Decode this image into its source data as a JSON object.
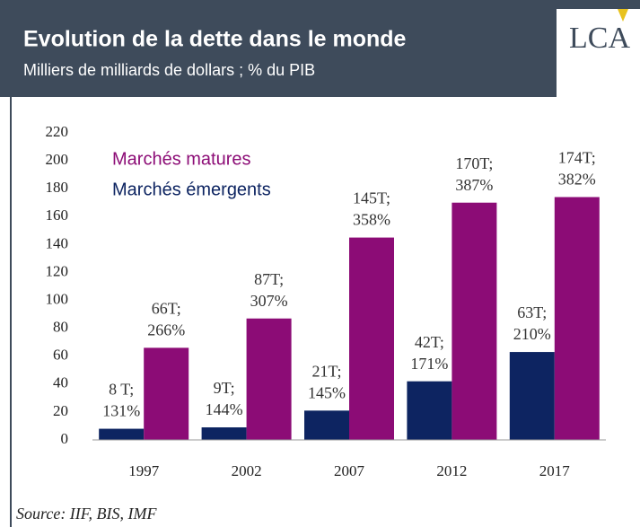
{
  "chart_data": {
    "type": "bar",
    "title": "Evolution de la dette dans le monde",
    "subtitle": "Milliers de milliards de dollars ; % du PIB",
    "logo": "LCA",
    "source": "Source: IIF, BIS, IMF",
    "categories": [
      "1997",
      "2002",
      "2007",
      "2012",
      "2017"
    ],
    "series": [
      {
        "name": "Marchés émergents",
        "color": "#0d2461",
        "values": [
          8,
          9,
          21,
          42,
          63
        ],
        "value_labels": [
          "8 T;",
          "9T;",
          "21T;",
          "42T;",
          "63T;"
        ],
        "share_labels": [
          "131%",
          "144%",
          "145%",
          "171%",
          "210%"
        ]
      },
      {
        "name": "Marchés matures",
        "color": "#8c0c76",
        "values": [
          66,
          87,
          145,
          170,
          174
        ],
        "value_labels": [
          "66T;",
          "87T;",
          "145T;",
          "170T;",
          "174T;"
        ],
        "share_labels": [
          "266%",
          "307%",
          "358%",
          "387%",
          "382%"
        ]
      }
    ],
    "ylim": [
      0,
      220
    ],
    "yticks": [
      0,
      20,
      40,
      60,
      80,
      100,
      120,
      140,
      160,
      180,
      200,
      220
    ],
    "grid": false
  }
}
